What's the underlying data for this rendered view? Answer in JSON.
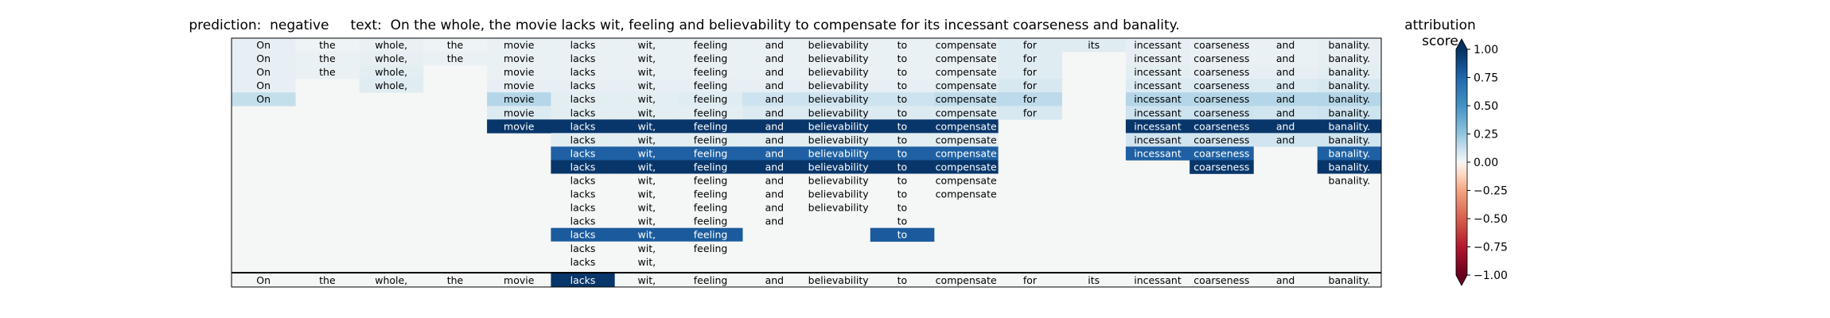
{
  "header": {
    "title": "prediction:  negative     text:  On the whole, the movie lacks wit, feeling and believability to compensate for its incessant coarseness and banality.",
    "colorbar_title": "attribution score"
  },
  "colors": {
    "frame": "#000000",
    "text_light": "#ffffff",
    "text_dark": "#000000",
    "neutral": "#f5f6f6",
    "pos_light": "#e3eef4",
    "pos_mid": "#d1e5f0",
    "pos_strong": "#2166ac",
    "pos_max": "#053061",
    "neg_max": "#67001f"
  },
  "chart_data": {
    "type": "heatmap",
    "title": "prediction:  negative     text:  On the whole, the movie lacks wit, feeling and believability to compensate for its incessant coarseness and banality.",
    "colorbar_label": "attribution score",
    "colorbar_ticks": [
      "1.00",
      "0.75",
      "0.50",
      "0.25",
      "0.00",
      "−0.25",
      "−0.50",
      "−0.75",
      "−1.00"
    ],
    "colorbar_tick_values": [
      1.0,
      0.75,
      0.5,
      0.25,
      0.0,
      -0.25,
      -0.5,
      -0.75,
      -1.0
    ],
    "vmin": -1.0,
    "vmax": 1.0,
    "colormap": "RdBu",
    "tokens": [
      "On",
      "the",
      "whole,",
      "the",
      "movie",
      "lacks",
      "wit,",
      "feeling",
      "and",
      "believability",
      "to",
      "compensate",
      "for",
      "its",
      "incessant",
      "coarseness",
      "and",
      "banality."
    ],
    "rows": [
      {
        "cells": [
          [
            0,
            0.04
          ],
          [
            1,
            0.02
          ],
          [
            2,
            0.03
          ],
          [
            3,
            0.02
          ],
          [
            4,
            0.03
          ],
          [
            5,
            0.03
          ],
          [
            6,
            0.03
          ],
          [
            7,
            0.03
          ],
          [
            8,
            0.03
          ],
          [
            9,
            0.03
          ],
          [
            10,
            0.03
          ],
          [
            11,
            0.03
          ],
          [
            12,
            0.06
          ],
          [
            13,
            0.06
          ],
          [
            14,
            0.04
          ],
          [
            15,
            0.03
          ],
          [
            16,
            0.03
          ],
          [
            17,
            0.04
          ]
        ]
      },
      {
        "cells": [
          [
            0,
            0.04
          ],
          [
            1,
            0.03
          ],
          [
            2,
            0.04
          ],
          [
            3,
            0.03
          ],
          [
            4,
            0.03
          ],
          [
            5,
            0.03
          ],
          [
            6,
            0.03
          ],
          [
            7,
            0.03
          ],
          [
            8,
            0.03
          ],
          [
            9,
            0.03
          ],
          [
            10,
            0.03
          ],
          [
            11,
            0.03
          ],
          [
            12,
            0.06
          ],
          [
            14,
            0.04
          ],
          [
            15,
            0.03
          ],
          [
            16,
            0.03
          ],
          [
            17,
            0.04
          ]
        ]
      },
      {
        "cells": [
          [
            0,
            0.04
          ],
          [
            1,
            0.03
          ],
          [
            2,
            0.05
          ],
          [
            4,
            0.03
          ],
          [
            5,
            0.03
          ],
          [
            6,
            0.03
          ],
          [
            7,
            0.03
          ],
          [
            8,
            0.03
          ],
          [
            9,
            0.03
          ],
          [
            10,
            0.03
          ],
          [
            11,
            0.03
          ],
          [
            12,
            0.06
          ],
          [
            14,
            0.05
          ],
          [
            15,
            0.04
          ],
          [
            16,
            0.04
          ],
          [
            17,
            0.05
          ]
        ]
      },
      {
        "cells": [
          [
            0,
            0.04
          ],
          [
            2,
            0.06
          ],
          [
            4,
            0.04
          ],
          [
            5,
            0.04
          ],
          [
            6,
            0.04
          ],
          [
            7,
            0.04
          ],
          [
            8,
            0.04
          ],
          [
            9,
            0.04
          ],
          [
            10,
            0.04
          ],
          [
            11,
            0.05
          ],
          [
            12,
            0.08
          ],
          [
            14,
            0.07
          ],
          [
            15,
            0.07
          ],
          [
            16,
            0.07
          ],
          [
            17,
            0.08
          ]
        ]
      },
      {
        "cells": [
          [
            0,
            0.13
          ],
          [
            4,
            0.17
          ],
          [
            5,
            0.05
          ],
          [
            6,
            0.05
          ],
          [
            7,
            0.06
          ],
          [
            8,
            0.11
          ],
          [
            9,
            0.11
          ],
          [
            10,
            0.11
          ],
          [
            11,
            0.14
          ],
          [
            12,
            0.15
          ],
          [
            14,
            0.17
          ],
          [
            15,
            0.17
          ],
          [
            16,
            0.17
          ],
          [
            17,
            0.17
          ]
        ]
      },
      {
        "cells": [
          [
            4,
            0.07
          ],
          [
            5,
            0.05
          ],
          [
            6,
            0.05
          ],
          [
            7,
            0.05
          ],
          [
            8,
            0.07
          ],
          [
            9,
            0.07
          ],
          [
            10,
            0.07
          ],
          [
            11,
            0.07
          ],
          [
            12,
            0.08
          ],
          [
            14,
            0.11
          ],
          [
            15,
            0.11
          ],
          [
            16,
            0.1
          ],
          [
            17,
            0.11
          ]
        ]
      },
      {
        "cells": [
          [
            4,
            0.97
          ],
          [
            5,
            0.97
          ],
          [
            6,
            0.97
          ],
          [
            7,
            0.97
          ],
          [
            8,
            0.97
          ],
          [
            9,
            0.97
          ],
          [
            10,
            0.97
          ],
          [
            11,
            0.97
          ],
          [
            14,
            0.97
          ],
          [
            15,
            0.97
          ],
          [
            16,
            0.97
          ],
          [
            17,
            0.97
          ]
        ]
      },
      {
        "cells": [
          [
            5,
            0.05
          ],
          [
            6,
            0.05
          ],
          [
            7,
            0.05
          ],
          [
            8,
            0.05
          ],
          [
            9,
            0.05
          ],
          [
            10,
            0.05
          ],
          [
            11,
            0.05
          ],
          [
            14,
            0.1
          ],
          [
            15,
            0.1
          ],
          [
            16,
            0.1
          ],
          [
            17,
            0.1
          ]
        ]
      },
      {
        "cells": [
          [
            5,
            0.78
          ],
          [
            6,
            0.78
          ],
          [
            7,
            0.78
          ],
          [
            8,
            0.78
          ],
          [
            9,
            0.78
          ],
          [
            10,
            0.78
          ],
          [
            11,
            0.78
          ],
          [
            14,
            0.78
          ],
          [
            15,
            0.78
          ],
          [
            17,
            0.78
          ]
        ]
      },
      {
        "cells": [
          [
            5,
            0.97
          ],
          [
            6,
            0.97
          ],
          [
            7,
            0.97
          ],
          [
            8,
            0.97
          ],
          [
            9,
            0.97
          ],
          [
            10,
            0.97
          ],
          [
            11,
            0.97
          ],
          [
            15,
            0.97
          ],
          [
            17,
            0.97
          ]
        ]
      },
      {
        "cells": [
          [
            5,
            0.0
          ],
          [
            6,
            0.0
          ],
          [
            7,
            0.0
          ],
          [
            8,
            0.0
          ],
          [
            9,
            0.0
          ],
          [
            10,
            0.0
          ],
          [
            11,
            0.0
          ],
          [
            17,
            0.0
          ]
        ]
      },
      {
        "cells": [
          [
            5,
            0.0
          ],
          [
            6,
            0.0
          ],
          [
            7,
            0.0
          ],
          [
            8,
            0.0
          ],
          [
            9,
            0.0
          ],
          [
            10,
            0.0
          ],
          [
            11,
            0.0
          ]
        ]
      },
      {
        "cells": [
          [
            5,
            0.0
          ],
          [
            6,
            0.0
          ],
          [
            7,
            0.0
          ],
          [
            8,
            0.0
          ],
          [
            9,
            0.0
          ],
          [
            10,
            0.0
          ]
        ]
      },
      {
        "cells": [
          [
            5,
            0.0
          ],
          [
            6,
            0.0
          ],
          [
            7,
            0.0
          ],
          [
            8,
            0.0
          ],
          [
            10,
            0.0
          ]
        ]
      },
      {
        "cells": [
          [
            5,
            0.8
          ],
          [
            6,
            0.8
          ],
          [
            7,
            0.8
          ],
          [
            10,
            0.8
          ]
        ]
      },
      {
        "cells": [
          [
            5,
            0.0
          ],
          [
            6,
            0.0
          ],
          [
            7,
            0.0
          ]
        ]
      },
      {
        "cells": [
          [
            5,
            0.0
          ],
          [
            6,
            0.0
          ]
        ]
      }
    ],
    "summary_row": {
      "cells": [
        [
          0,
          0.0
        ],
        [
          1,
          0.0
        ],
        [
          2,
          0.0
        ],
        [
          3,
          0.0
        ],
        [
          4,
          0.0
        ],
        [
          5,
          0.97
        ],
        [
          6,
          0.0
        ],
        [
          7,
          0.0
        ],
        [
          8,
          0.0
        ],
        [
          9,
          0.0
        ],
        [
          10,
          0.0
        ],
        [
          11,
          0.0
        ],
        [
          12,
          0.0
        ],
        [
          13,
          0.0
        ],
        [
          14,
          0.0
        ],
        [
          15,
          0.0
        ],
        [
          16,
          0.0
        ],
        [
          17,
          0.0
        ]
      ]
    }
  }
}
